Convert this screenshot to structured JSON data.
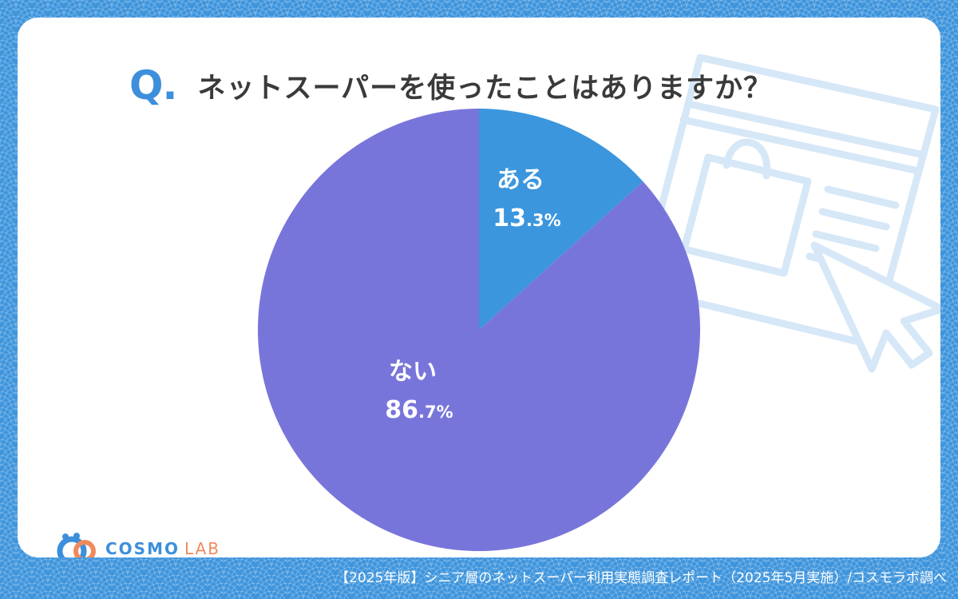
{
  "title": {
    "q_mark": "Q.",
    "question": "ネットスーパーを使ったことはありますか？"
  },
  "chart_data": {
    "type": "pie",
    "title": "ネットスーパーを使ったことはありますか？",
    "slices": [
      {
        "label": "ある",
        "value": 13.3,
        "display_main": "13",
        "display_dec": ".3%",
        "color": "#3b96dd"
      },
      {
        "label": "ない",
        "value": 86.7,
        "display_main": "86",
        "display_dec": ".7%",
        "color": "#7875da"
      }
    ],
    "start_angle_deg": 0,
    "direction": "clockwise"
  },
  "logo": {
    "cosmo": "COSMO",
    "lab": "LAB",
    "primary_color": "#3d8fdc",
    "accent_color": "#f08a5d"
  },
  "footer": {
    "source": "【2025年版】シニア層のネットスーパー利用実態調査レポート（2025年5月実施）/コスモラボ調べ"
  },
  "decoration": {
    "icon": "shopping-window-cursor-icon"
  }
}
